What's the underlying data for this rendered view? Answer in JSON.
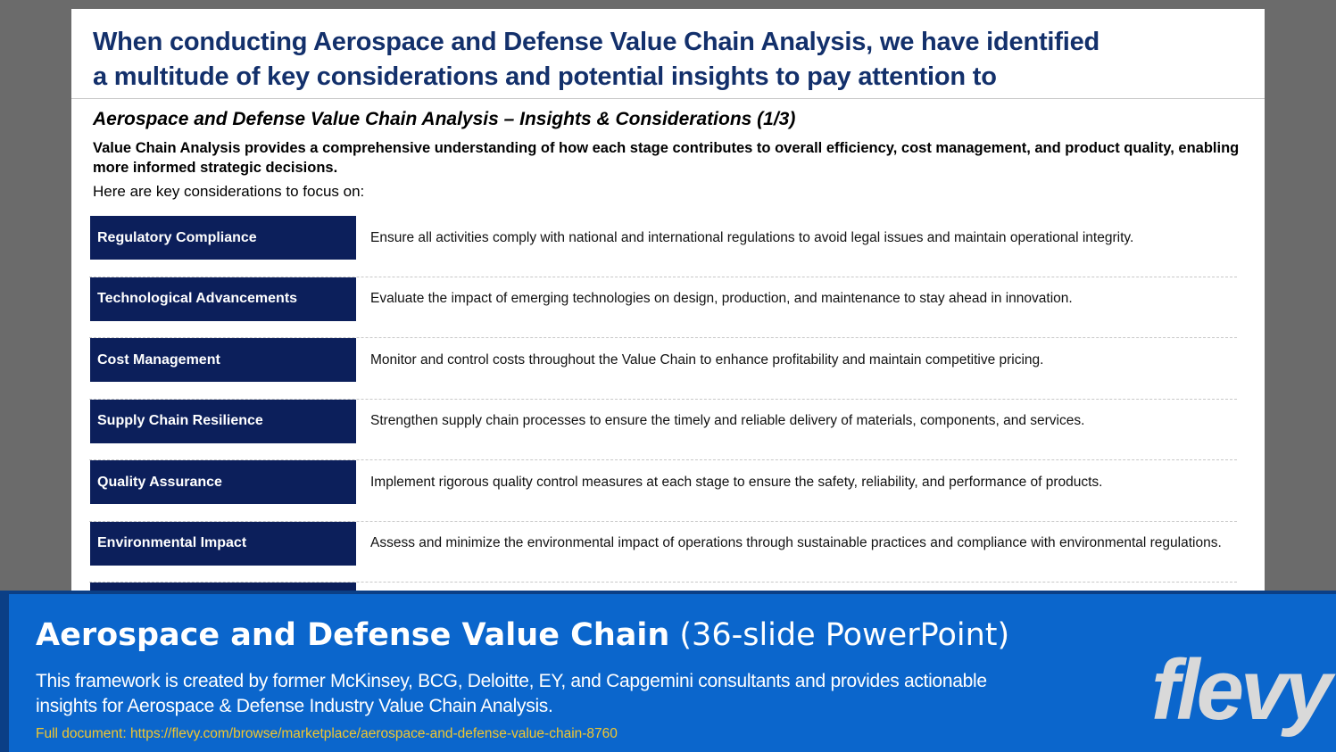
{
  "slide": {
    "title_line1": "When conducting Aerospace and Defense Value Chain Analysis, we have identified",
    "title_line2": "a multitude of key considerations and potential insights to pay attention to",
    "subtitle": "Aerospace and Defense Value Chain Analysis – Insights & Considerations (1/3)",
    "intro": "Value Chain Analysis provides a comprehensive understanding of how each stage contributes to overall efficiency, cost management, and product quality, enabling more informed strategic decisions.",
    "lead": "Here are key considerations to focus on:",
    "items": [
      {
        "label": "Regulatory Compliance",
        "desc": "Ensure all activities comply with national and international regulations to avoid legal issues and maintain operational integrity."
      },
      {
        "label": "Technological Advancements",
        "desc": "Evaluate the impact of emerging technologies on design, production, and maintenance to stay ahead in innovation."
      },
      {
        "label": "Cost Management",
        "desc": "Monitor and control costs throughout the Value Chain to enhance profitability and maintain competitive pricing."
      },
      {
        "label": "Supply Chain Resilience",
        "desc": "Strengthen supply chain processes to ensure the timely and reliable delivery of materials, components, and services."
      },
      {
        "label": "Quality Assurance",
        "desc": "Implement rigorous quality control measures at each stage to ensure the safety, reliability, and performance of products."
      },
      {
        "label": "Environmental Impact",
        "desc": "Assess and minimize the environmental impact of operations through sustainable practices and compliance with environmental regulations."
      }
    ]
  },
  "banner": {
    "title_bold": "Aerospace and Defense Value Chain",
    "title_light": " (36-slide PowerPoint)",
    "desc": "This framework is created by former McKinsey, BCG, Deloitte, EY, and Capgemini consultants and provides actionable insights for Aerospace & Defense Industry Value Chain Analysis.",
    "link": "Full document: https://flevy.com/browse/marketplace/aerospace-and-defense-value-chain-8760",
    "logo": "flevy"
  }
}
